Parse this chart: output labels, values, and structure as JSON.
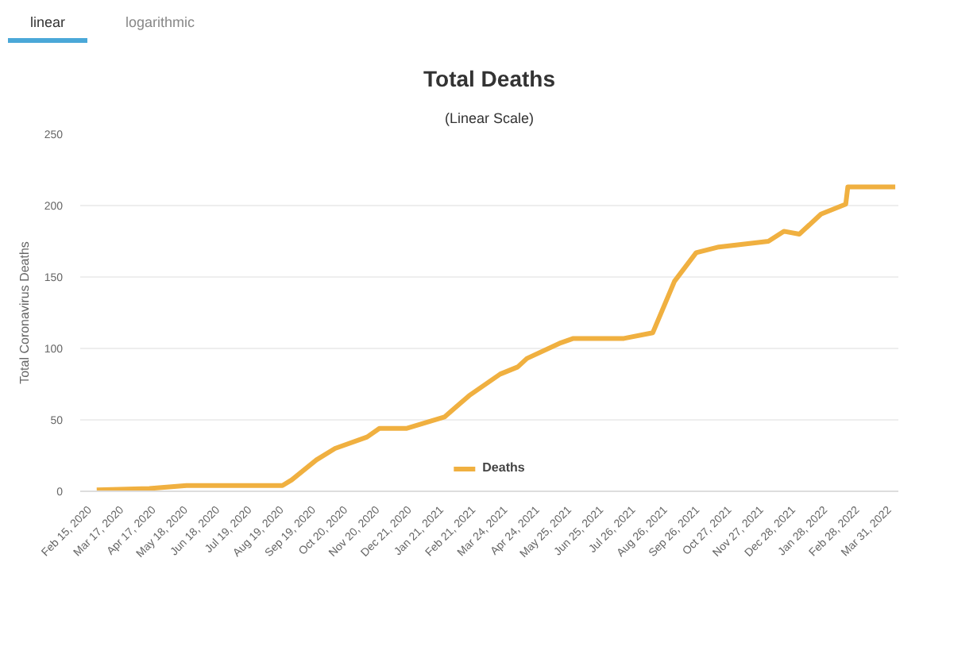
{
  "chart_data": {
    "type": "line",
    "title": "Total Deaths",
    "subtitle": "(Linear Scale)",
    "ylabel": "Total Coronavirus Deaths",
    "annotations": [
      "linear",
      "logarithmic"
    ],
    "x": [
      "2020-02-21",
      "2020-04-12",
      "2020-05-18",
      "2020-08-19",
      "2020-08-28",
      "2020-09-21",
      "2020-10-09",
      "2020-11-09",
      "2020-11-21",
      "2020-12-17",
      "2021-01-23",
      "2021-02-16",
      "2021-03-18",
      "2021-04-04",
      "2021-04-13",
      "2021-05-16",
      "2021-05-28",
      "2021-07-16",
      "2021-08-13",
      "2021-09-03",
      "2021-09-24",
      "2021-10-16",
      "2021-12-03",
      "2021-12-18",
      "2022-01-02",
      "2022-01-23",
      "2022-02-16",
      "2022-02-18",
      "2022-04-05"
    ],
    "series": [
      {
        "name": "Deaths",
        "color": "#f0b040",
        "values": [
          1,
          2,
          4,
          4,
          8,
          22,
          30,
          38,
          44,
          44,
          52,
          67,
          82,
          87,
          93,
          104,
          107,
          107,
          111,
          147,
          167,
          171,
          175,
          182,
          180,
          194,
          201,
          213,
          213
        ]
      }
    ],
    "xlim": [
      "2020-02-05",
      "2022-04-08"
    ],
    "xticks": [
      {
        "value": "2020-02-15",
        "label": "Feb 15, 2020"
      },
      {
        "value": "2020-03-17",
        "label": "Mar 17, 2020"
      },
      {
        "value": "2020-04-17",
        "label": "Apr 17, 2020"
      },
      {
        "value": "2020-05-18",
        "label": "May 18, 2020"
      },
      {
        "value": "2020-06-18",
        "label": "Jun 18, 2020"
      },
      {
        "value": "2020-07-19",
        "label": "Jul 19, 2020"
      },
      {
        "value": "2020-08-19",
        "label": "Aug 19, 2020"
      },
      {
        "value": "2020-09-19",
        "label": "Sep 19, 2020"
      },
      {
        "value": "2020-10-20",
        "label": "Oct 20, 2020"
      },
      {
        "value": "2020-11-20",
        "label": "Nov 20, 2020"
      },
      {
        "value": "2020-12-21",
        "label": "Dec 21, 2020"
      },
      {
        "value": "2021-01-21",
        "label": "Jan 21, 2021"
      },
      {
        "value": "2021-02-21",
        "label": "Feb 21, 2021"
      },
      {
        "value": "2021-03-24",
        "label": "Mar 24, 2021"
      },
      {
        "value": "2021-04-24",
        "label": "Apr 24, 2021"
      },
      {
        "value": "2021-05-25",
        "label": "May 25, 2021"
      },
      {
        "value": "2021-06-25",
        "label": "Jun 25, 2021"
      },
      {
        "value": "2021-07-26",
        "label": "Jul 26, 2021"
      },
      {
        "value": "2021-08-26",
        "label": "Aug 26, 2021"
      },
      {
        "value": "2021-09-26",
        "label": "Sep 26, 2021"
      },
      {
        "value": "2021-10-27",
        "label": "Oct 27, 2021"
      },
      {
        "value": "2021-11-27",
        "label": "Nov 27, 2021"
      },
      {
        "value": "2021-12-28",
        "label": "Dec 28, 2021"
      },
      {
        "value": "2022-01-28",
        "label": "Jan 28, 2022"
      },
      {
        "value": "2022-02-28",
        "label": "Feb 28, 2022"
      },
      {
        "value": "2022-03-31",
        "label": "Mar 31, 2022"
      }
    ],
    "ylim": [
      0,
      250
    ],
    "yticks": [
      0,
      50,
      100,
      150,
      200,
      250
    ],
    "grid": "y",
    "legend": "bottom",
    "marker": "none",
    "line_style": "solid"
  }
}
